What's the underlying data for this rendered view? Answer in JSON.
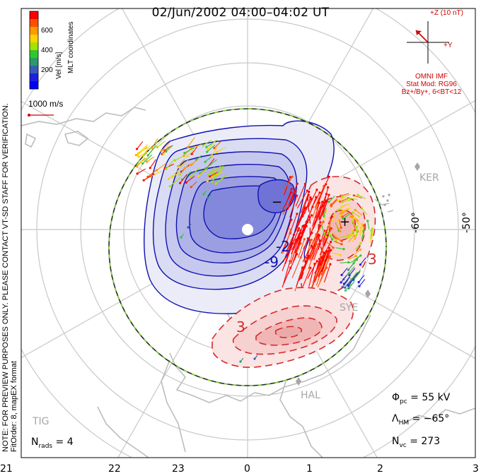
{
  "title": "02/Jun/2002 04:00–04:02 UT",
  "left_note_line1": "NOTE: FOR PREVIEW PURPOSES ONLY. PLEASE CONTACT VT-SD STAFF FOR VERIFICATION.",
  "left_note_line2": "FitOrder: 8, mapEX format",
  "colorbar": {
    "label": "Vel [m/s]",
    "coord_label": "MLT coordinates",
    "ticks": [
      "600",
      "400",
      "200"
    ],
    "colors": [
      "#ff0000",
      "#ff5000",
      "#ff9a00",
      "#ffd200",
      "#a8e000",
      "#2ec82e",
      "#2a9a6a",
      "#3a5ab8",
      "#1f1fe0",
      "#0000ff"
    ]
  },
  "scale_vector": {
    "label": "1000 m/s",
    "color": "#d00000"
  },
  "imf": {
    "bz_label": "+Z (10 nT)",
    "by_label": "+Y",
    "source": "OMNI IMF",
    "model_line1": "Stat Mod: RG96",
    "model_line2": "Bz+/By+, 6<BT<12",
    "color": "#d00000"
  },
  "stations": [
    "KER",
    "SYE",
    "HAL",
    "TIG"
  ],
  "latitude_labels": [
    "-60°",
    "-50°"
  ],
  "mlt_labels": [
    "21",
    "22",
    "23",
    "0",
    "1",
    "2",
    "3"
  ],
  "contour_labels": [
    "-9",
    "-2",
    "3",
    "3",
    "−",
    "+"
  ],
  "stats": {
    "phi_symbol": "Φ",
    "phi_sub": "pc",
    "phi_value": " = 55 kV",
    "lambda_symbol": "Λ",
    "lambda_sub": "HM",
    "lambda_value": " = −65°",
    "nvc_symbol": "N",
    "nvc_sub": "vc",
    "nvc_value": " = 273",
    "nrads_symbol": "N",
    "nrads_sub": "rads",
    "nrads_value": " = 4"
  },
  "colors": {
    "negative_cell": "#3b3bdc",
    "positive_cell": "#d42a2a",
    "boundary": "#2a2a2a",
    "boundary_dash": "#7ed23a",
    "grid": "#c8c8c8"
  }
}
